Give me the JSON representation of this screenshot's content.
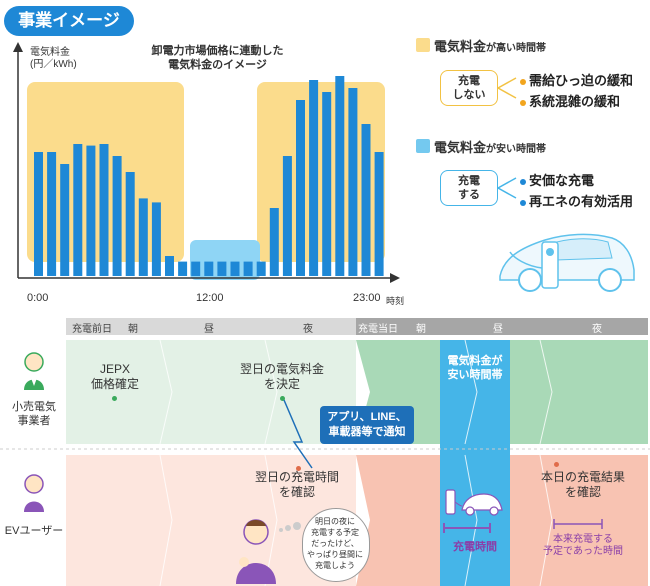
{
  "header": {
    "title": "事業イメージ"
  },
  "chart": {
    "ylabel_line1": "電気料金",
    "ylabel_line2": "(円／kWh)",
    "title_line1": "卸電力市場価格に連動した",
    "title_line2": "電気料金のイメージ",
    "x_ticks": [
      "0:00",
      "12:00",
      "23:00"
    ],
    "x_axis_label": "時刻"
  },
  "chart_data": {
    "type": "bar",
    "x_ticks": [
      "0:00",
      "12:00",
      "23:00"
    ],
    "values": [
      155,
      155,
      140,
      165,
      163,
      165,
      150,
      130,
      97,
      92,
      25,
      18,
      18,
      18,
      18,
      18,
      18,
      18,
      85,
      150,
      220,
      245,
      230,
      250,
      235,
      190,
      155
    ],
    "ylim": [
      0,
      270
    ],
    "highlight_colors": {
      "high": "#fbdc8c",
      "low": "#8fd5f5",
      "bar": "#1e88d6"
    }
  },
  "legend": {
    "high": {
      "label": "電気料金",
      "suffix": "が高い時間帯"
    },
    "low": {
      "label": "電気料金",
      "suffix": "が安い時間帯"
    }
  },
  "actions": {
    "high": {
      "line1": "充電",
      "line2": "しない",
      "effects": [
        "需給ひっ迫の緩和",
        "系統混雑の緩和"
      ]
    },
    "low": {
      "line1": "充電",
      "line2": "する",
      "effects": [
        "安価な充電",
        "再エネの有効活用"
      ]
    }
  },
  "timeline": {
    "day1": "充電前日",
    "day2": "充電当日",
    "morning": "朝",
    "noon": "昼",
    "night": "夜"
  },
  "lanes": {
    "retailer": {
      "label_line1": "小売電気",
      "label_line2": "事業者",
      "jepx_line1": "JEPX",
      "jepx_line2": "価格確定",
      "decide_line1": "翌日の電気料金",
      "decide_line2": "を決定",
      "notify_line1": "アプリ、LINE、",
      "notify_line2": "車載器等で通知",
      "cheap_line1": "電気料金が",
      "cheap_line2": "安い時間帯"
    },
    "ev": {
      "label": "EVユーザー",
      "confirm_line1": "翌日の充電時間",
      "confirm_line2": "を確認",
      "bubble_lines": [
        "明日の夜に",
        "充電する予定",
        "だったけど、",
        "やっぱり昼間に",
        "充電しよう"
      ],
      "charge_time": "充電時間",
      "result_line1": "本日の充電結果",
      "result_line2": "を確認",
      "planned_line1": "本来充電する",
      "planned_line2": "予定であった時間"
    }
  }
}
